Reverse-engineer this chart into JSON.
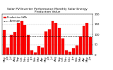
{
  "title": "Solar PV/Inverter Performance Monthly Solar Energy Production Value",
  "months": [
    "May",
    "Jun",
    "Jul",
    "Aug",
    "Sep",
    "Oct",
    "Nov",
    "Dec",
    "Jan",
    "Feb",
    "Mar",
    "Apr",
    "May",
    "Jun",
    "Jul",
    "Aug",
    "Sep",
    "Oct",
    "Nov",
    "Dec",
    "Jan",
    "Feb",
    "Mar",
    "Apr",
    "May",
    "Jun"
  ],
  "values": [
    120,
    35,
    95,
    110,
    155,
    165,
    145,
    95,
    20,
    10,
    40,
    35,
    115,
    125,
    165,
    155,
    130,
    80,
    20,
    15,
    30,
    45,
    90,
    140,
    155,
    85
  ],
  "bar_color": "#ff0000",
  "dark_bar_color": "#bb0000",
  "background_color": "#ffffff",
  "grid_color": "#999999",
  "ylim": [
    0,
    200
  ],
  "ylabel": "kWh",
  "title_fontsize": 3.2,
  "tick_fontsize": 2.8,
  "legend_fontsize": 2.5,
  "legend_labels": [
    "Production kWh",
    "-- Average"
  ],
  "avg_line_color": "#000000"
}
